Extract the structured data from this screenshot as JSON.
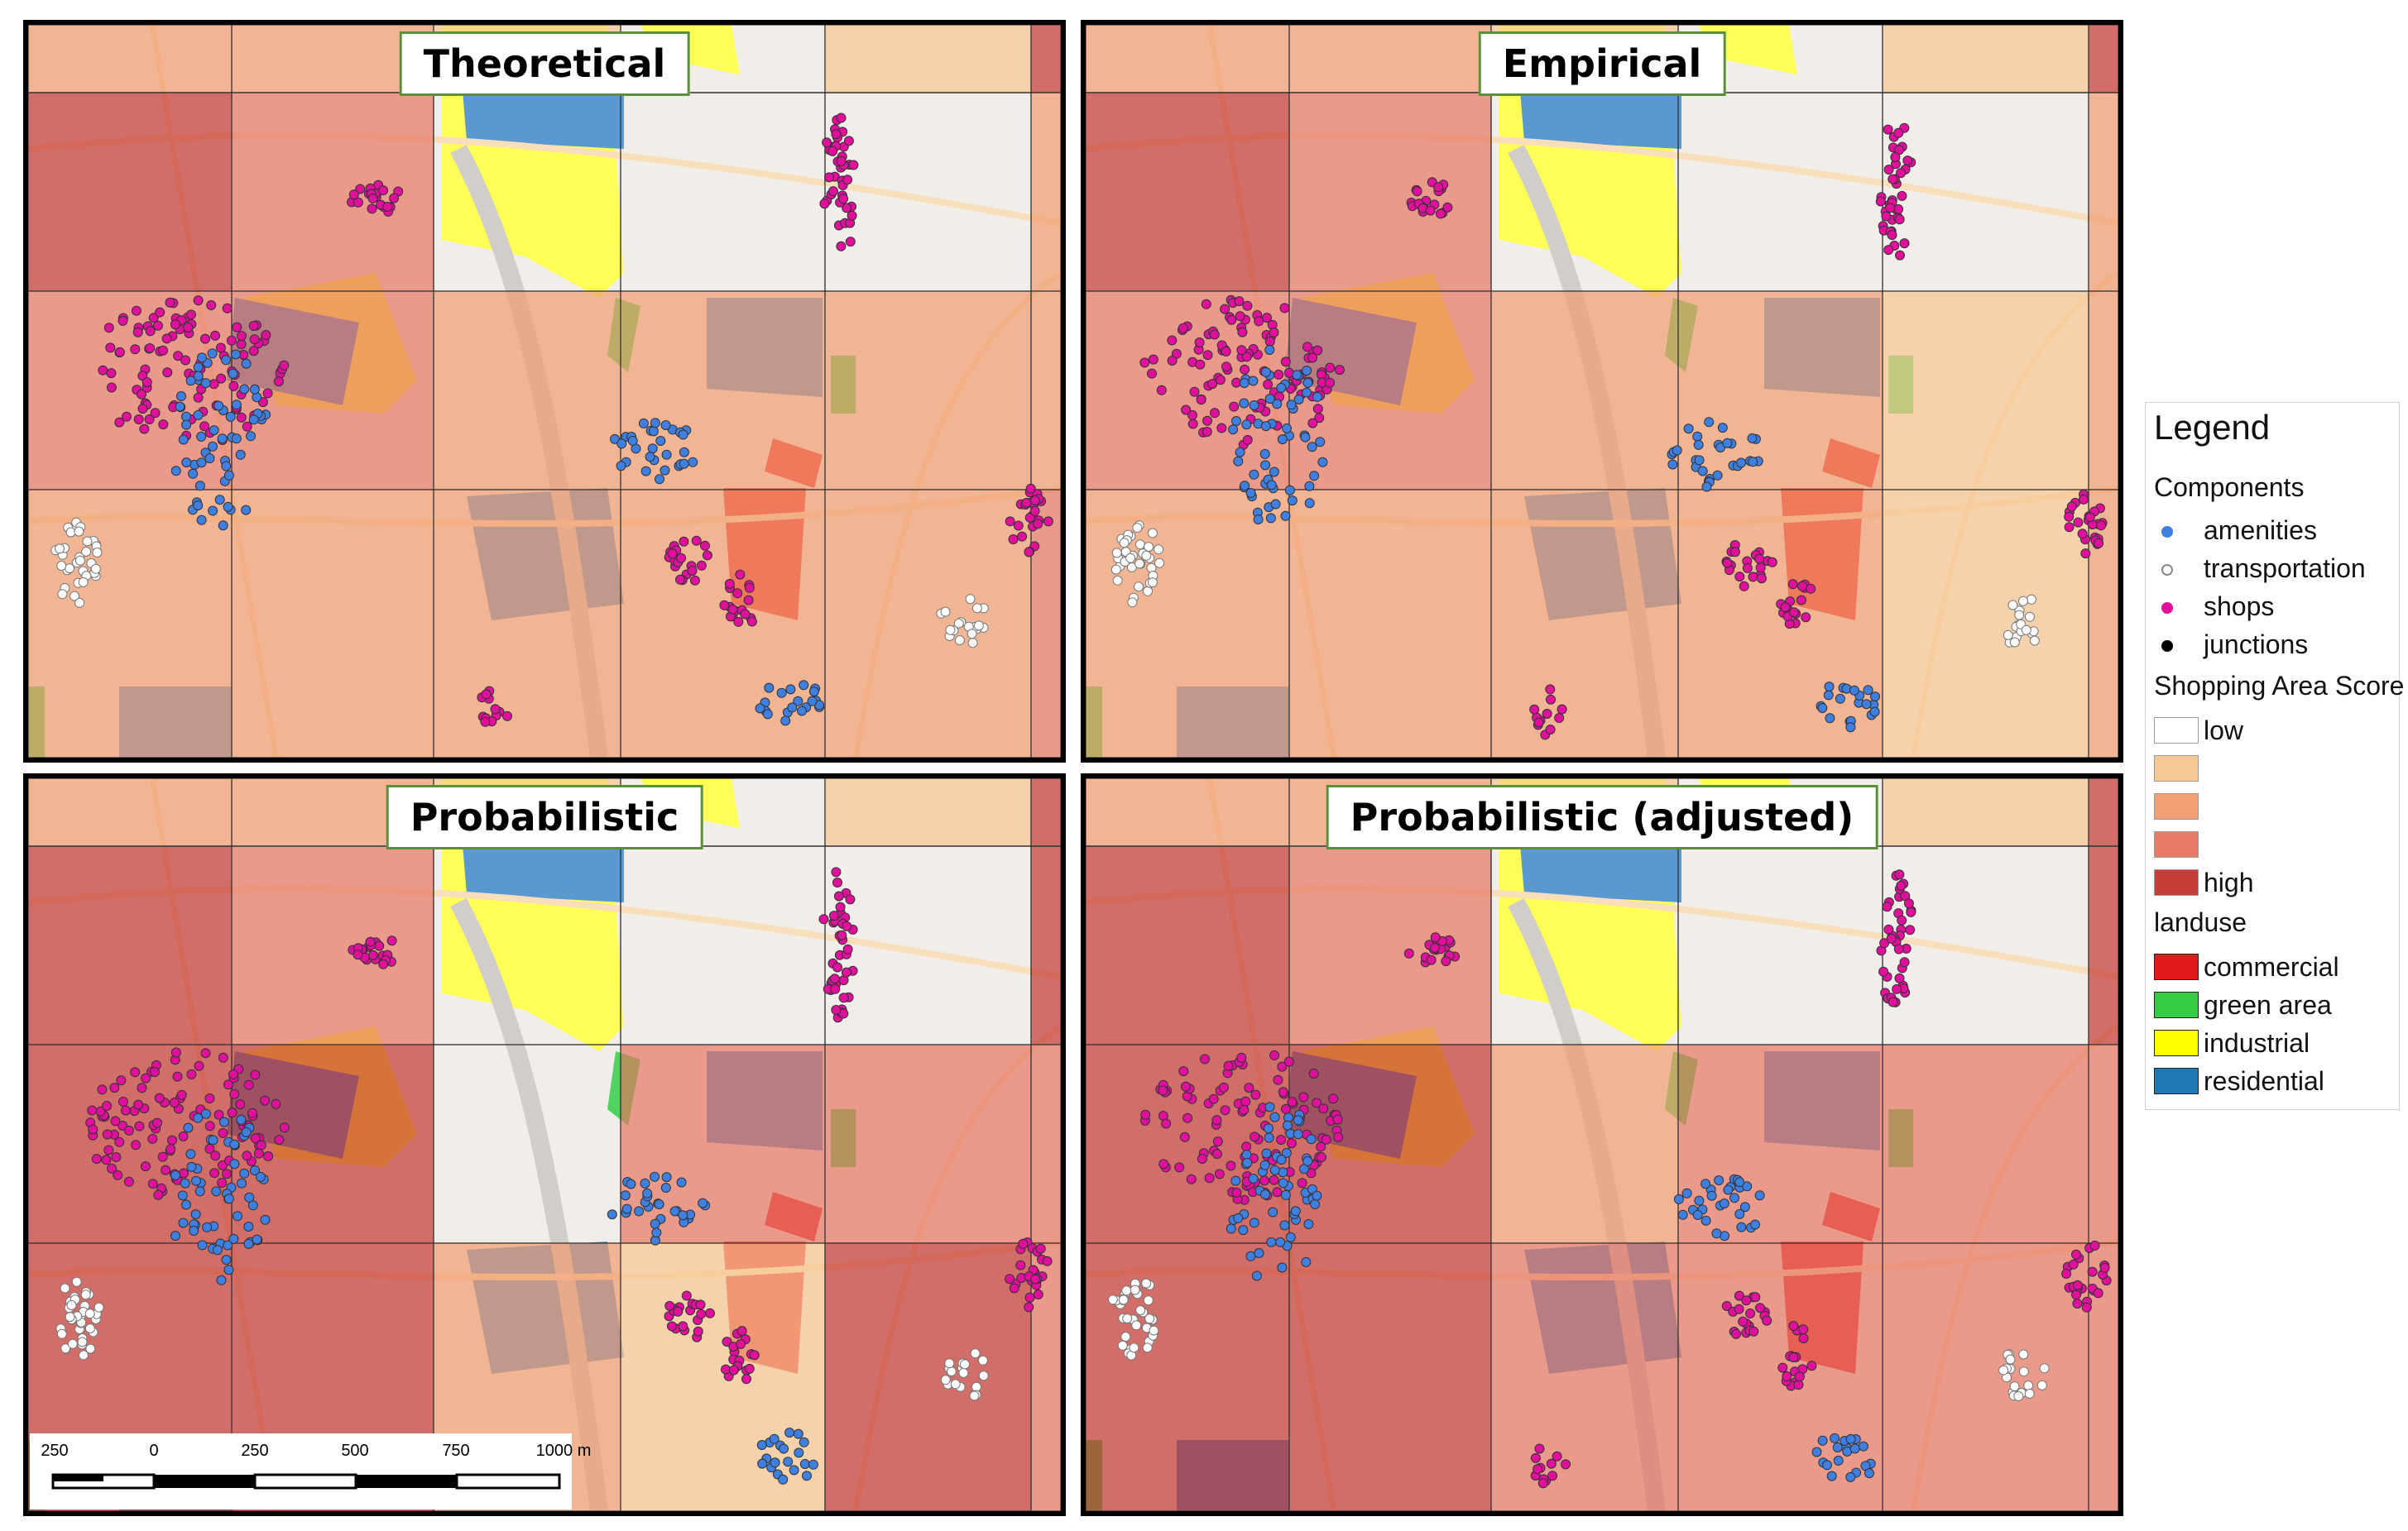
{
  "panels": [
    {
      "id": "theoretical",
      "title": "Theoretical",
      "grid": [
        [
          2,
          2,
          1,
          0,
          1,
          4
        ],
        [
          4,
          3,
          0,
          0,
          0,
          2
        ],
        [
          3,
          3,
          2,
          2,
          2,
          2
        ],
        [
          2,
          2,
          2,
          2,
          2,
          3
        ]
      ]
    },
    {
      "id": "empirical",
      "title": "Empirical",
      "grid": [
        [
          2,
          2,
          1,
          0,
          1,
          4
        ],
        [
          4,
          3,
          0,
          0,
          0,
          2
        ],
        [
          3,
          3,
          2,
          2,
          1,
          2
        ],
        [
          2,
          2,
          2,
          2,
          1,
          2
        ]
      ]
    },
    {
      "id": "probabilistic",
      "title": "Probabilistic",
      "grid": [
        [
          2,
          2,
          1,
          0,
          1,
          4
        ],
        [
          4,
          3,
          0,
          0,
          0,
          4
        ],
        [
          4,
          4,
          0,
          3,
          3,
          3
        ],
        [
          4,
          4,
          2,
          1,
          4,
          3
        ]
      ]
    },
    {
      "id": "probabilistic-adjusted",
      "title": "Probabilistic (adjusted)",
      "grid": [
        [
          2,
          2,
          1,
          0,
          1,
          4
        ],
        [
          4,
          3,
          0,
          0,
          0,
          4
        ],
        [
          4,
          4,
          2,
          3,
          3,
          3
        ],
        [
          4,
          4,
          3,
          3,
          3,
          3
        ]
      ]
    }
  ],
  "scale_colors": [
    "#ffffff",
    "#f6c895",
    "#f39f75",
    "#e87a68",
    "#c63d39"
  ],
  "scalebar": {
    "labels": [
      "250",
      "0",
      "250",
      "500",
      "750",
      "1000 m"
    ]
  },
  "legend": {
    "title": "Legend",
    "components_heading": "Components",
    "components": [
      {
        "label": "amenities",
        "color": "#3f7fe0"
      },
      {
        "label": "transportation",
        "color": "#ffffff"
      },
      {
        "label": "shops",
        "color": "#e0109c"
      },
      {
        "label": "junctions",
        "color": "#000000"
      }
    ],
    "score_heading": "Shopping Area Score",
    "score_items": [
      {
        "label": "low",
        "color": "#ffffff"
      },
      {
        "label": "",
        "color": "#f6c895"
      },
      {
        "label": "",
        "color": "#f39f75"
      },
      {
        "label": "",
        "color": "#e87a68"
      },
      {
        "label": "high",
        "color": "#c63d39"
      }
    ],
    "landuse_heading": "landuse",
    "landuse": [
      {
        "label": "commercial",
        "color": "#e31a1c"
      },
      {
        "label": "green area",
        "color": "#33cc44"
      },
      {
        "label": "industrial",
        "color": "#ffff00"
      },
      {
        "label": "residential",
        "color": "#1f78b4"
      }
    ]
  }
}
